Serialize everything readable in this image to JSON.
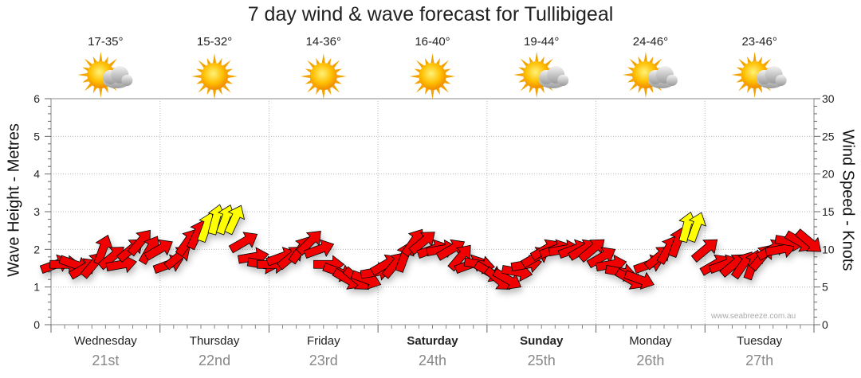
{
  "chart_data": {
    "type": "line",
    "title": "7 day wind & wave forecast for Tullibigeal",
    "ylabel_left": "Wave Height - Metres",
    "ylabel_right": "Wind Speed - Knots",
    "ylim_left": [
      0,
      6
    ],
    "ylim_right": [
      0,
      30
    ],
    "yticks_left": [
      "0",
      "1",
      "2",
      "3",
      "4",
      "5",
      "6"
    ],
    "yticks_right": [
      "0",
      "5",
      "10",
      "15",
      "20",
      "25",
      "30"
    ],
    "grid": true,
    "days": [
      {
        "name": "Wednesday",
        "date": "21st",
        "temp": "17-35°",
        "icon": "partly-cloudy-icon",
        "bold": false
      },
      {
        "name": "Thursday",
        "date": "22nd",
        "temp": "15-32°",
        "icon": "sunny-icon",
        "bold": false
      },
      {
        "name": "Friday",
        "date": "23rd",
        "temp": "14-36°",
        "icon": "sunny-icon",
        "bold": false
      },
      {
        "name": "Saturday",
        "date": "24th",
        "temp": "16-40°",
        "icon": "sunny-icon",
        "bold": true
      },
      {
        "name": "Sunday",
        "date": "25th",
        "temp": "19-44°",
        "icon": "partly-cloudy-icon",
        "bold": true
      },
      {
        "name": "Monday",
        "date": "26th",
        "temp": "24-46°",
        "icon": "partly-cloudy-icon",
        "bold": false
      },
      {
        "name": "Tuesday",
        "date": "27th",
        "temp": "23-46°",
        "icon": "partly-cloudy-icon",
        "bold": false
      }
    ],
    "wind_series": {
      "name": "Wind Speed - Knots",
      "values": [
        8,
        8,
        8,
        7.5,
        8,
        10,
        9,
        8,
        10,
        11,
        10,
        10,
        8,
        9,
        11,
        12,
        13,
        14,
        14,
        14,
        11,
        9,
        8,
        8,
        9,
        9,
        10,
        11,
        10,
        8,
        7,
        6,
        6,
        6,
        7,
        8,
        8,
        9,
        11,
        11,
        10,
        10,
        10,
        9,
        8,
        8,
        7,
        6,
        6,
        7,
        8,
        9,
        10,
        10,
        10,
        10,
        10,
        10,
        9,
        8,
        7,
        6,
        6,
        8,
        9,
        10,
        11,
        13,
        13,
        10,
        8,
        8,
        8,
        8,
        8,
        9,
        10,
        10,
        11,
        11,
        11
      ],
      "colors": [
        "#f00000",
        "#f00000",
        "#f00000",
        "#f00000",
        "#f00000",
        "#f00000",
        "#f00000",
        "#f00000",
        "#f00000",
        "#f00000",
        "#f00000",
        "#f00000",
        "#f00000",
        "#f00000",
        "#f00000",
        "#f00000",
        "#ffff00",
        "#ffff00",
        "#ffff00",
        "#ffff00",
        "#f00000",
        "#f00000",
        "#f00000",
        "#f00000",
        "#f00000",
        "#f00000",
        "#f00000",
        "#f00000",
        "#f00000",
        "#f00000",
        "#f00000",
        "#f00000",
        "#f00000",
        "#f00000",
        "#f00000",
        "#f00000",
        "#f00000",
        "#f00000",
        "#f00000",
        "#f00000",
        "#f00000",
        "#f00000",
        "#f00000",
        "#f00000",
        "#f00000",
        "#f00000",
        "#f00000",
        "#f00000",
        "#f00000",
        "#f00000",
        "#f00000",
        "#f00000",
        "#f00000",
        "#f00000",
        "#f00000",
        "#f00000",
        "#f00000",
        "#f00000",
        "#f00000",
        "#f00000",
        "#f00000",
        "#f00000",
        "#f00000",
        "#f00000",
        "#f00000",
        "#f00000",
        "#f00000",
        "#ffff00",
        "#ffff00",
        "#f00000",
        "#f00000",
        "#f00000",
        "#f00000",
        "#f00000",
        "#f00000",
        "#f00000",
        "#f00000",
        "#f00000",
        "#f00000",
        "#f00000",
        "#f00000"
      ],
      "direction_deg": [
        250,
        270,
        290,
        240,
        220,
        200,
        230,
        260,
        230,
        220,
        210,
        240,
        250,
        230,
        215,
        205,
        200,
        195,
        200,
        205,
        240,
        260,
        280,
        270,
        250,
        230,
        215,
        225,
        250,
        270,
        290,
        300,
        310,
        290,
        260,
        240,
        220,
        200,
        215,
        230,
        250,
        260,
        240,
        220,
        250,
        280,
        300,
        310,
        300,
        280,
        260,
        240,
        240,
        250,
        260,
        250,
        240,
        230,
        240,
        260,
        280,
        300,
        290,
        250,
        230,
        210,
        200,
        195,
        200,
        230,
        240,
        250,
        230,
        215,
        200,
        220,
        240,
        260,
        280,
        300,
        310
      ]
    }
  },
  "credit": "www.seabreeze.com.au",
  "colors": {
    "arrow_red": "#f00000",
    "arrow_yellow": "#ffff00",
    "grid": "#bbbbbb",
    "date": "#888888"
  }
}
